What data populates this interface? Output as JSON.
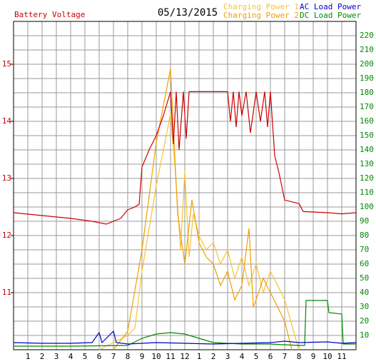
{
  "chart_data": {
    "type": "line",
    "title": "Battery Voltage",
    "subtitle": "05/13/2015",
    "xlim": [
      0,
      24
    ],
    "xticks": [
      {
        "value": 1,
        "label": "1"
      },
      {
        "value": 2,
        "label": "2"
      },
      {
        "value": 3,
        "label": "3"
      },
      {
        "value": 4,
        "label": "4"
      },
      {
        "value": 5,
        "label": "5"
      },
      {
        "value": 6,
        "label": "6"
      },
      {
        "value": 7,
        "label": "7"
      },
      {
        "value": 8,
        "label": "8"
      },
      {
        "value": 9,
        "label": "9"
      },
      {
        "value": 10,
        "label": "10"
      },
      {
        "value": 11,
        "label": "11"
      },
      {
        "value": 12,
        "label": "12"
      },
      {
        "value": 13,
        "label": "1"
      },
      {
        "value": 14,
        "label": "2"
      },
      {
        "value": 15,
        "label": "3"
      },
      {
        "value": 16,
        "label": "4"
      },
      {
        "value": 17,
        "label": "5"
      },
      {
        "value": 18,
        "label": "6"
      },
      {
        "value": 19,
        "label": "7"
      },
      {
        "value": 20,
        "label": "8"
      },
      {
        "value": 21,
        "label": "9"
      },
      {
        "value": 22,
        "label": "10"
      },
      {
        "value": 23,
        "label": "11"
      }
    ],
    "ylim": [
      10,
      15.75
    ],
    "yticks": [
      11,
      12,
      13,
      14,
      15
    ],
    "y2lim": [
      0,
      230
    ],
    "y2ticks": [
      10,
      20,
      30,
      40,
      50,
      60,
      70,
      80,
      90,
      100,
      110,
      120,
      130,
      140,
      150,
      160,
      170,
      180,
      190,
      200,
      210,
      220
    ],
    "grid": true,
    "series": [
      {
        "name": "Battery Voltage",
        "color": "#cc0000",
        "axis": "y",
        "x": [
          0,
          2,
          4,
          5.5,
          6.5,
          7.5,
          8,
          8.5,
          8.8,
          9,
          9.5,
          10,
          10.5,
          11,
          11.2,
          11.4,
          11.6,
          11.9,
          12.1,
          12.3,
          12.6,
          13,
          14,
          14.5,
          15,
          15.2,
          15.4,
          15.6,
          15.8,
          16,
          16.3,
          16.6,
          17,
          17.3,
          17.6,
          17.8,
          18,
          18.3,
          18.6,
          19,
          20,
          20.3,
          22,
          23,
          24
        ],
        "values": [
          12.4,
          12.35,
          12.3,
          12.25,
          12.2,
          12.3,
          12.45,
          12.5,
          12.55,
          13.2,
          13.5,
          13.75,
          14.1,
          14.52,
          13.6,
          14.52,
          13.5,
          14.52,
          13.7,
          14.52,
          14.52,
          14.52,
          14.52,
          14.52,
          14.52,
          14.0,
          14.52,
          13.9,
          14.52,
          14.1,
          14.52,
          13.8,
          14.52,
          14.0,
          14.52,
          13.9,
          14.52,
          13.4,
          13.1,
          12.62,
          12.56,
          12.42,
          12.4,
          12.38,
          12.4
        ]
      },
      {
        "name": "Charging Power 1",
        "color": "#f5c33b",
        "axis": "y2",
        "x": [
          6,
          7,
          8,
          8.5,
          9,
          10,
          11,
          11.3,
          11.7,
          12,
          12.3,
          12.6,
          13,
          13.5,
          14,
          14.5,
          15,
          15.5,
          16,
          16.5,
          17,
          17.5,
          18,
          19,
          20
        ],
        "values": [
          0,
          5,
          10,
          15,
          55,
          115,
          165,
          130,
          70,
          125,
          65,
          95,
          80,
          70,
          75,
          60,
          70,
          50,
          65,
          45,
          60,
          40,
          55,
          35,
          0
        ]
      },
      {
        "name": "Charging Power 2",
        "color": "#f0a000",
        "axis": "y2",
        "x": [
          7,
          8,
          9,
          10,
          11,
          11.5,
          12,
          12.5,
          13,
          13.5,
          14,
          14.5,
          15,
          15.5,
          16,
          16.5,
          16.8,
          17,
          17.5,
          18,
          19,
          19.5
        ],
        "values": [
          0,
          13,
          70,
          145,
          197,
          95,
          60,
          105,
          75,
          65,
          60,
          45,
          55,
          35,
          45,
          85,
          30,
          35,
          50,
          40,
          20,
          0
        ]
      },
      {
        "name": "AC Load Power",
        "color": "#0000cc",
        "axis": "y2",
        "x": [
          0,
          2,
          4,
          5.5,
          6,
          6.2,
          7,
          7.2,
          8,
          10,
          12,
          14,
          16,
          18,
          19,
          20,
          22,
          23,
          24
        ],
        "values": [
          5,
          4.5,
          4.5,
          5,
          12,
          5,
          13,
          5,
          4,
          5,
          4.5,
          4,
          4.5,
          5,
          6,
          5,
          5.5,
          4.5,
          5
        ]
      },
      {
        "name": "DC Load Power",
        "color": "#008800",
        "axis": "y2",
        "x": [
          0,
          4,
          8,
          9,
          10,
          11,
          12,
          13,
          14,
          16,
          18,
          20,
          20.4,
          20.5,
          21,
          22,
          22.1,
          23,
          23.1,
          24
        ],
        "values": [
          2.5,
          2.5,
          3,
          8,
          11,
          12,
          11,
          8,
          5,
          4,
          4,
          3,
          3,
          34.5,
          34.5,
          34.5,
          26,
          25,
          4,
          4
        ]
      }
    ]
  }
}
